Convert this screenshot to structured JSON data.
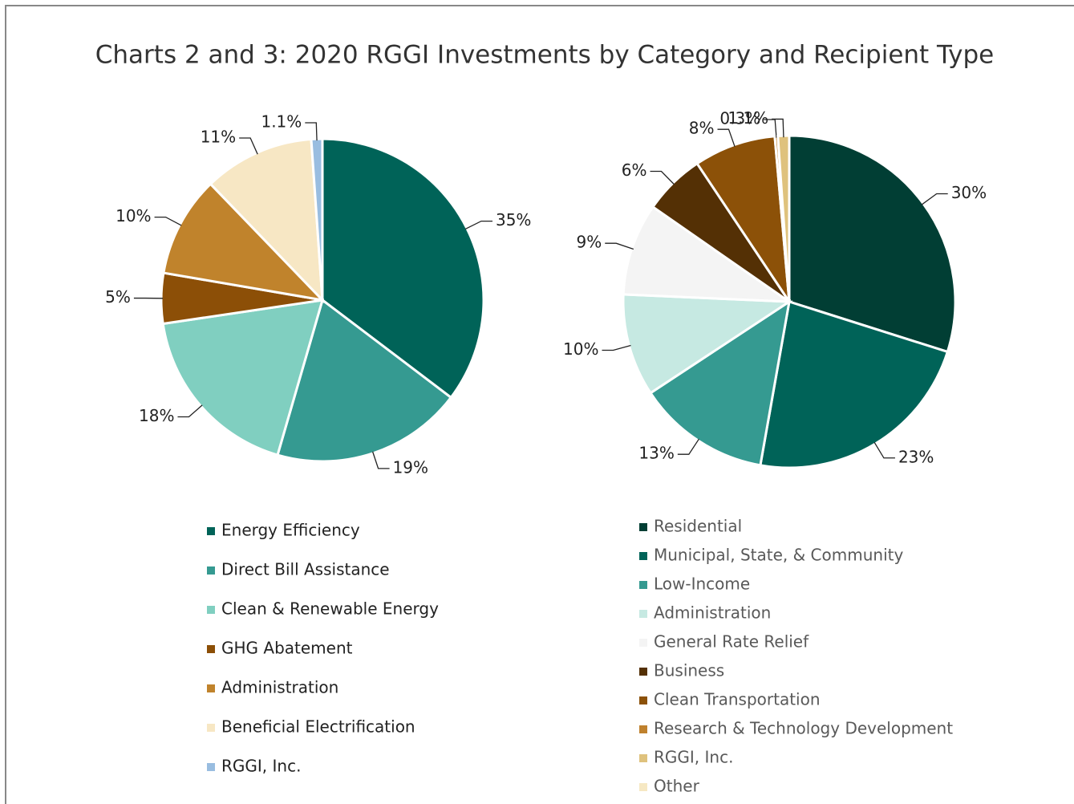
{
  "title": "Charts 2 and 3: 2020 RGGI Investments by Category and Recipient Type",
  "chart_data": [
    {
      "type": "pie",
      "categories": [
        "Energy Efficiency",
        "Direct Bill Assistance",
        "Clean & Renewable Energy",
        "GHG Abatement",
        "Administration",
        "Beneficial Electrification",
        "RGGI, Inc."
      ],
      "values": [
        35,
        19,
        18,
        5,
        10,
        11,
        1.1
      ],
      "value_labels": [
        "35%",
        "19%",
        "18%",
        "5%",
        "10%",
        "11%",
        "1.1%"
      ],
      "colors": [
        "#006358",
        "#359a91",
        "#80cfc0",
        "#8c4f07",
        "#c0832c",
        "#f7e7c4",
        "#99bde0"
      ]
    },
    {
      "type": "pie",
      "categories": [
        "Residential",
        "Municipal, State, & Community",
        "Low-Income",
        "Administration",
        "General Rate Relief",
        "Business",
        "Clean Transportation",
        "Research & Technology Development",
        "RGGI, Inc.",
        "Other"
      ],
      "values": [
        30,
        23,
        13,
        10,
        9,
        6,
        8,
        0.3,
        1.1,
        0
      ],
      "value_labels": [
        "30%",
        "23%",
        "13%",
        "10%",
        "9%",
        "6%",
        "8%",
        "0.3%",
        "1.1%",
        null
      ],
      "colors": [
        "#013e34",
        "#006358",
        "#359a91",
        "#c6e9e2",
        "#f4f4f4",
        "#543005",
        "#8c5108",
        "#bf812d",
        "#dfc27d",
        "#f6e8c3"
      ]
    }
  ]
}
